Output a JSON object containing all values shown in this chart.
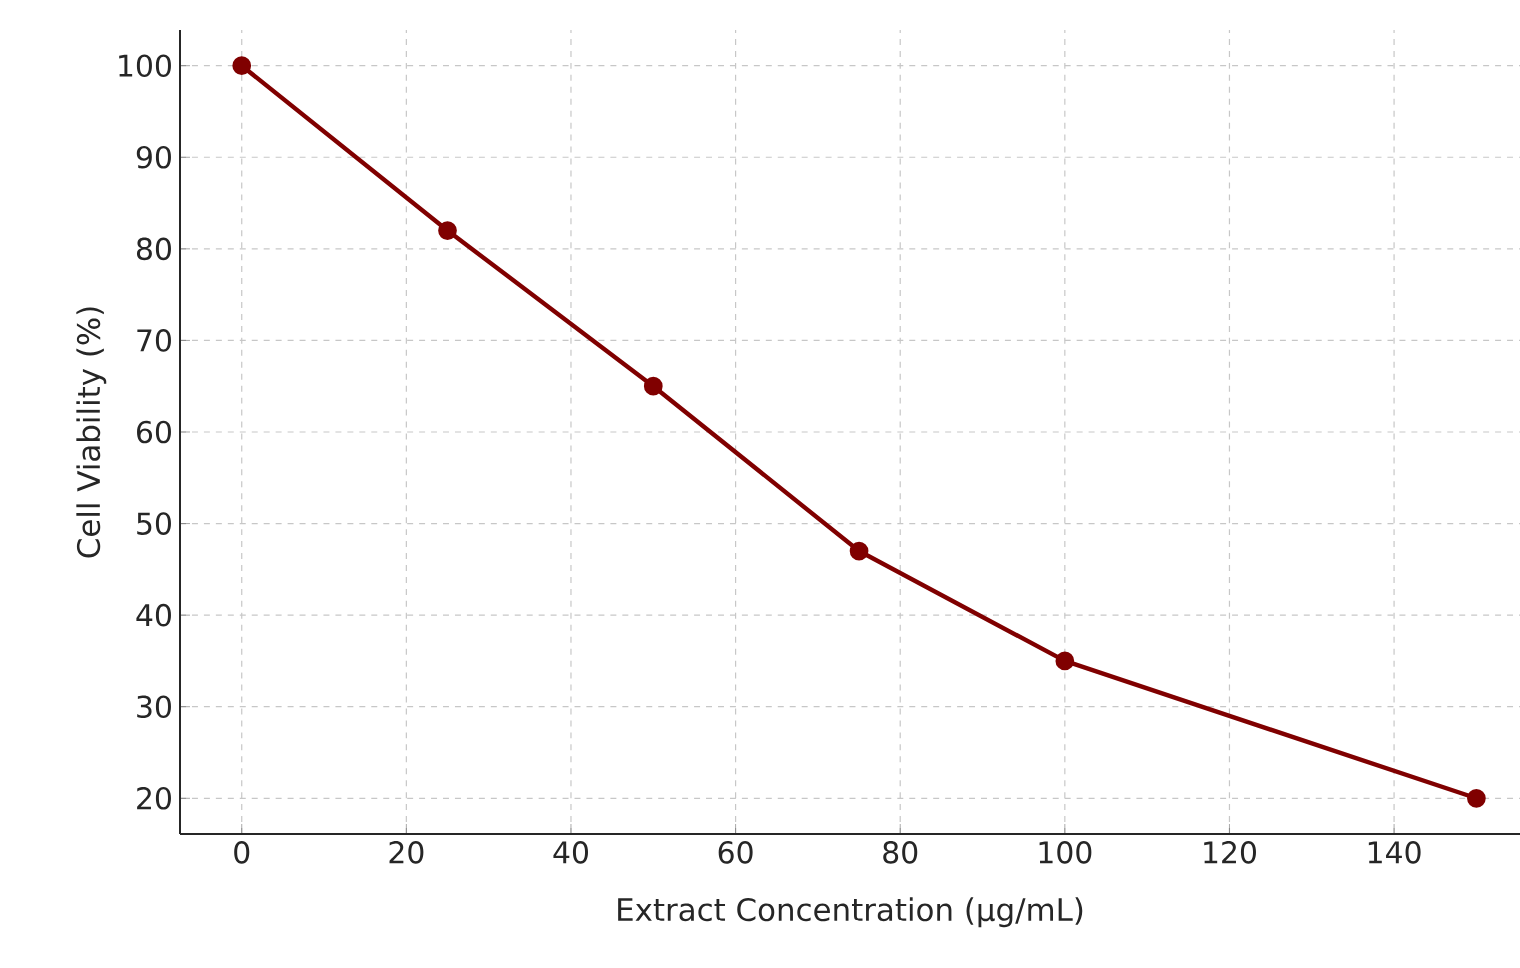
{
  "chart_data": {
    "type": "line",
    "xlabel": "Extract Concentration (µg/mL)",
    "ylabel": "Cell Viability (%)",
    "x": [
      0,
      25,
      50,
      75,
      100,
      150
    ],
    "series": [
      {
        "color": "#800000",
        "values": [
          100,
          82,
          65,
          47,
          35,
          20
        ]
      }
    ],
    "xlim": [
      -7.5,
      155.3
    ],
    "ylim": [
      16.1,
      103.9
    ],
    "xticks": [
      0,
      20,
      40,
      60,
      80,
      100,
      120,
      140
    ],
    "yticks": [
      20,
      30,
      40,
      50,
      60,
      70,
      80,
      90,
      100
    ],
    "grid": true,
    "marker": "circle",
    "line_style": "solid"
  }
}
